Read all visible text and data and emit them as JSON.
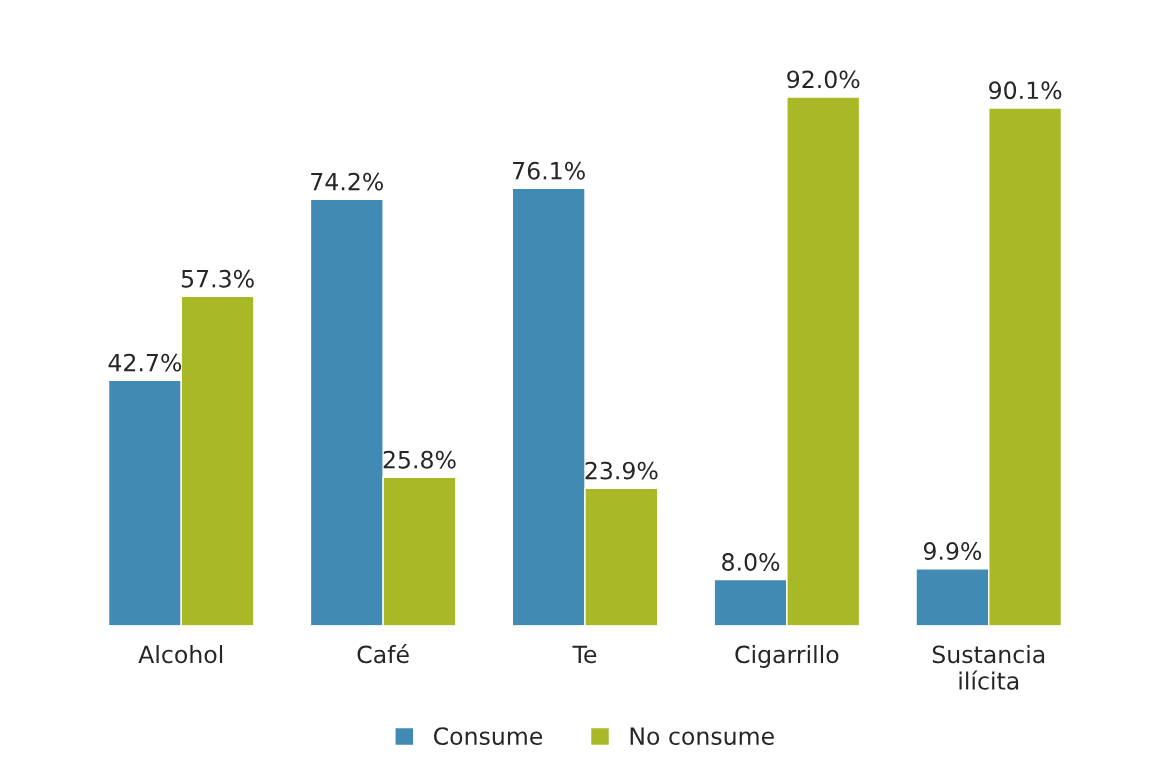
{
  "chart_data": {
    "type": "bar",
    "categories": [
      "Alcohol",
      "Café",
      "Te",
      "Cigarrillo",
      "Sustancia\nilícita"
    ],
    "series": [
      {
        "name": "Consume",
        "color": "#418ab3",
        "values": [
          42.7,
          74.2,
          76.1,
          8.0,
          9.9
        ],
        "value_labels": [
          "42.7%",
          "74.2%",
          "76.1%",
          "8.0%",
          "9.9%"
        ]
      },
      {
        "name": "No consume",
        "color": "#a9b826",
        "values": [
          57.3,
          25.8,
          23.9,
          92.0,
          90.1
        ],
        "value_labels": [
          "57.3%",
          "25.8%",
          "23.9%",
          "92.0%",
          "90.1%"
        ]
      }
    ],
    "tick_labels": "x",
    "grid": false,
    "legend": "bottom"
  }
}
